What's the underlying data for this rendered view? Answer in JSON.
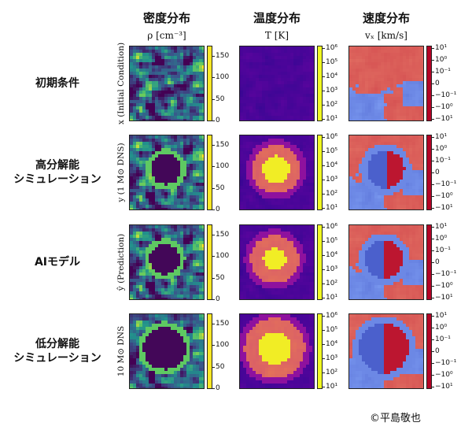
{
  "columns": [
    {
      "title": "密度分布",
      "label": "ρ [cm⁻³]",
      "cmap": "viridis",
      "ticks": [
        "150",
        "100",
        "50",
        "0"
      ]
    },
    {
      "title": "温度分布",
      "label": "T [K]",
      "cmap": "plasma",
      "ticks": [
        "10⁶",
        "10⁵",
        "10⁴",
        "10³",
        "10²",
        "10¹"
      ]
    },
    {
      "title": "速度分布",
      "label": "vₓ [km/s]",
      "cmap": "coolwarm",
      "ticks": [
        "10¹",
        "10⁰",
        "10⁻¹",
        "0",
        "−10⁻¹",
        "−10⁰",
        "−10¹"
      ]
    }
  ],
  "rows": [
    {
      "label": "初期条件",
      "ylabel": "x (Initial Condition)",
      "hot": 0.0
    },
    {
      "label": "高分解能\nシミュレーション",
      "ylabel": "y (1 M⊙ DNS)",
      "hot": 1.0
    },
    {
      "label": "AIモデル",
      "ylabel": "ŷ (Prediction)",
      "hot": 0.8
    },
    {
      "label": "低分解能\nシミュレーション",
      "ylabel": "10 M⊙ DNS",
      "hot": 0.9
    }
  ],
  "credit": "©平島敬也",
  "colors": {
    "viridis_low": "#2b1a4f",
    "viridis_high": "#f6e620",
    "plasma_low": "#3b0f8c",
    "plasma_high": "#f6f01f",
    "cool": "#3b6fd4",
    "warm": "#d0382b"
  }
}
